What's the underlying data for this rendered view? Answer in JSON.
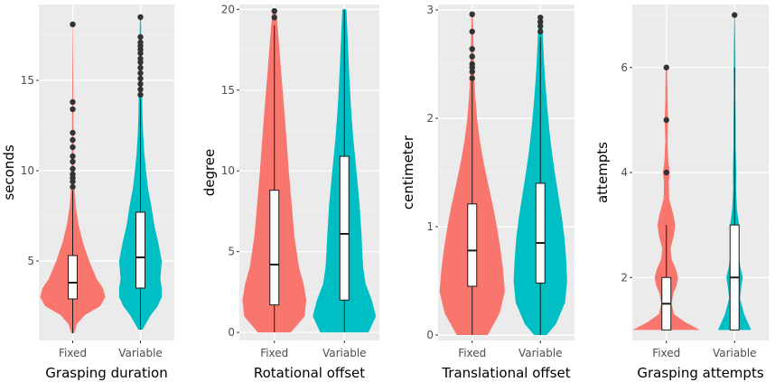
{
  "chart_data": [
    {
      "type": "violin",
      "xlabel": "Grasping duration",
      "ylabel": "seconds",
      "ylim": [
        0.6,
        19.2
      ],
      "yticks": [
        5,
        10,
        15
      ],
      "categories": [
        "Fixed",
        "Variable"
      ],
      "colors": [
        "#F8766D",
        "#00BFC4"
      ],
      "series": [
        {
          "box": {
            "q1": 2.9,
            "median": 3.8,
            "q3": 5.3,
            "whisker_low": 1.0,
            "whisker_high": 8.9
          },
          "density": [
            [
              1.0,
              0.04
            ],
            [
              1.5,
              0.12
            ],
            [
              2.0,
              0.35
            ],
            [
              2.5,
              0.8
            ],
            [
              3.0,
              0.95
            ],
            [
              3.5,
              0.88
            ],
            [
              4.0,
              0.7
            ],
            [
              5.0,
              0.48
            ],
            [
              6.0,
              0.3
            ],
            [
              7.0,
              0.17
            ],
            [
              8.0,
              0.09
            ],
            [
              9.0,
              0.05
            ],
            [
              10.0,
              0.035
            ],
            [
              12.0,
              0.02
            ],
            [
              14.0,
              0.015
            ],
            [
              16.0,
              0.01
            ],
            [
              18.1,
              0.005
            ]
          ],
          "outliers": [
            9.1,
            9.4,
            9.6,
            9.8,
            10.1,
            10.5,
            10.8,
            11.3,
            11.7,
            12.1,
            13.4,
            13.8,
            18.1
          ]
        },
        {
          "box": {
            "q1": 3.5,
            "median": 5.2,
            "q3": 7.7,
            "whisker_low": 1.2,
            "whisker_high": 14.0
          },
          "density": [
            [
              1.2,
              0.06
            ],
            [
              2.0,
              0.3
            ],
            [
              2.5,
              0.5
            ],
            [
              3.0,
              0.62
            ],
            [
              3.5,
              0.62
            ],
            [
              4.0,
              0.58
            ],
            [
              5.0,
              0.62
            ],
            [
              6.0,
              0.52
            ],
            [
              7.0,
              0.4
            ],
            [
              8.0,
              0.32
            ],
            [
              9.0,
              0.22
            ],
            [
              10.0,
              0.16
            ],
            [
              11.0,
              0.11
            ],
            [
              12.0,
              0.08
            ],
            [
              13.0,
              0.06
            ],
            [
              14.0,
              0.05
            ],
            [
              15.0,
              0.04
            ],
            [
              16.0,
              0.035
            ],
            [
              17.0,
              0.03
            ],
            [
              18.5,
              0.012
            ]
          ],
          "outliers": [
            14.2,
            14.5,
            14.8,
            15.1,
            15.4,
            15.7,
            16.0,
            16.2,
            16.5,
            16.7,
            16.9,
            17.1,
            17.4,
            18.5
          ]
        }
      ]
    },
    {
      "type": "violin",
      "xlabel": "Rotational offset",
      "ylabel": "degree",
      "ylim": [
        -0.5,
        20.3
      ],
      "yticks": [
        0,
        5,
        10,
        15,
        20
      ],
      "categories": [
        "Fixed",
        "Variable"
      ],
      "colors": [
        "#F8766D",
        "#00BFC4"
      ],
      "series": [
        {
          "box": {
            "q1": 1.7,
            "median": 4.2,
            "q3": 8.8,
            "whisker_low": 0.0,
            "whisker_high": 19.0
          },
          "density": [
            [
              0.0,
              0.48
            ],
            [
              1.0,
              0.88
            ],
            [
              2.0,
              0.93
            ],
            [
              3.0,
              0.85
            ],
            [
              4.0,
              0.72
            ],
            [
              5.0,
              0.65
            ],
            [
              6.0,
              0.58
            ],
            [
              8.0,
              0.5
            ],
            [
              10.0,
              0.42
            ],
            [
              12.0,
              0.35
            ],
            [
              14.0,
              0.28
            ],
            [
              16.0,
              0.2
            ],
            [
              18.0,
              0.13
            ],
            [
              19.0,
              0.09
            ],
            [
              20.0,
              0.05
            ]
          ],
          "outliers": [
            19.5,
            19.9
          ]
        },
        {
          "box": {
            "q1": 2.0,
            "median": 6.1,
            "q3": 10.9,
            "whisker_low": 0.0,
            "whisker_high": 20.0
          },
          "density": [
            [
              0.0,
              0.7
            ],
            [
              1.0,
              0.92
            ],
            [
              2.0,
              0.8
            ],
            [
              3.0,
              0.62
            ],
            [
              4.0,
              0.55
            ],
            [
              5.0,
              0.52
            ],
            [
              6.0,
              0.5
            ],
            [
              8.0,
              0.44
            ],
            [
              10.0,
              0.35
            ],
            [
              12.0,
              0.26
            ],
            [
              14.0,
              0.19
            ],
            [
              16.0,
              0.14
            ],
            [
              18.0,
              0.1
            ],
            [
              20.0,
              0.06
            ]
          ],
          "outliers": []
        }
      ]
    },
    {
      "type": "violin",
      "xlabel": "Translational offset",
      "ylabel": "centimeter",
      "ylim": [
        -0.05,
        3.05
      ],
      "yticks": [
        0,
        1,
        2,
        3
      ],
      "categories": [
        "Fixed",
        "Variable"
      ],
      "colors": [
        "#F8766D",
        "#00BFC4"
      ],
      "series": [
        {
          "box": {
            "q1": 0.45,
            "median": 0.78,
            "q3": 1.21,
            "whisker_low": 0.0,
            "whisker_high": 2.35
          },
          "density": [
            [
              0.0,
              0.45
            ],
            [
              0.2,
              0.8
            ],
            [
              0.4,
              0.95
            ],
            [
              0.6,
              0.9
            ],
            [
              0.8,
              0.82
            ],
            [
              1.0,
              0.72
            ],
            [
              1.2,
              0.6
            ],
            [
              1.4,
              0.46
            ],
            [
              1.6,
              0.33
            ],
            [
              1.8,
              0.22
            ],
            [
              2.0,
              0.14
            ],
            [
              2.2,
              0.09
            ],
            [
              2.4,
              0.06
            ],
            [
              2.6,
              0.04
            ],
            [
              2.8,
              0.03
            ],
            [
              2.97,
              0.015
            ]
          ],
          "outliers": [
            2.37,
            2.43,
            2.47,
            2.5,
            2.57,
            2.64,
            2.8,
            2.96
          ]
        },
        {
          "box": {
            "q1": 0.48,
            "median": 0.85,
            "q3": 1.4,
            "whisker_low": 0.0,
            "whisker_high": 2.75
          },
          "density": [
            [
              0.0,
              0.18
            ],
            [
              0.1,
              0.45
            ],
            [
              0.3,
              0.72
            ],
            [
              0.5,
              0.78
            ],
            [
              0.7,
              0.75
            ],
            [
              0.9,
              0.7
            ],
            [
              1.1,
              0.62
            ],
            [
              1.3,
              0.52
            ],
            [
              1.5,
              0.42
            ],
            [
              1.7,
              0.33
            ],
            [
              1.9,
              0.26
            ],
            [
              2.1,
              0.2
            ],
            [
              2.3,
              0.15
            ],
            [
              2.5,
              0.11
            ],
            [
              2.7,
              0.08
            ],
            [
              2.93,
              0.05
            ]
          ],
          "outliers": [
            2.8,
            2.85,
            2.89,
            2.93
          ]
        }
      ]
    },
    {
      "type": "violin",
      "xlabel": "Grasping attempts",
      "ylabel": "attempts",
      "ylim": [
        0.8,
        7.2
      ],
      "yticks": [
        2,
        4,
        6
      ],
      "categories": [
        "Fixed",
        "Variable"
      ],
      "colors": [
        "#F8766D",
        "#00BFC4"
      ],
      "series": [
        {
          "box": {
            "q1": 1.0,
            "median": 1.5,
            "q3": 2.0,
            "whisker_low": 1.0,
            "whisker_high": 3.0
          },
          "density": [
            [
              1.0,
              0.98
            ],
            [
              1.15,
              0.55
            ],
            [
              1.3,
              0.22
            ],
            [
              1.5,
              0.15
            ],
            [
              1.7,
              0.2
            ],
            [
              1.85,
              0.3
            ],
            [
              2.0,
              0.34
            ],
            [
              2.15,
              0.28
            ],
            [
              2.35,
              0.15
            ],
            [
              2.55,
              0.12
            ],
            [
              2.8,
              0.22
            ],
            [
              3.0,
              0.26
            ],
            [
              3.2,
              0.2
            ],
            [
              3.5,
              0.08
            ],
            [
              3.8,
              0.07
            ],
            [
              4.0,
              0.1
            ],
            [
              4.2,
              0.06
            ],
            [
              4.6,
              0.03
            ],
            [
              5.0,
              0.05
            ],
            [
              5.4,
              0.03
            ],
            [
              6.0,
              0.02
            ]
          ],
          "outliers": [
            4.0,
            5.0,
            6.0
          ]
        },
        {
          "box": {
            "q1": 1.0,
            "median": 2.0,
            "q3": 3.0,
            "whisker_low": 1.0,
            "whisker_high": 6.0
          },
          "density": [
            [
              1.0,
              0.48
            ],
            [
              1.3,
              0.28
            ],
            [
              1.6,
              0.16
            ],
            [
              1.85,
              0.2
            ],
            [
              2.0,
              0.24
            ],
            [
              2.2,
              0.17
            ],
            [
              2.5,
              0.1
            ],
            [
              2.8,
              0.11
            ],
            [
              3.0,
              0.13
            ],
            [
              3.3,
              0.07
            ],
            [
              3.7,
              0.04
            ],
            [
              4.0,
              0.05
            ],
            [
              4.5,
              0.03
            ],
            [
              5.0,
              0.03
            ],
            [
              5.5,
              0.02
            ],
            [
              6.0,
              0.025
            ],
            [
              6.5,
              0.02
            ],
            [
              7.0,
              0.01
            ]
          ],
          "outliers": [
            7.0
          ]
        }
      ]
    }
  ]
}
